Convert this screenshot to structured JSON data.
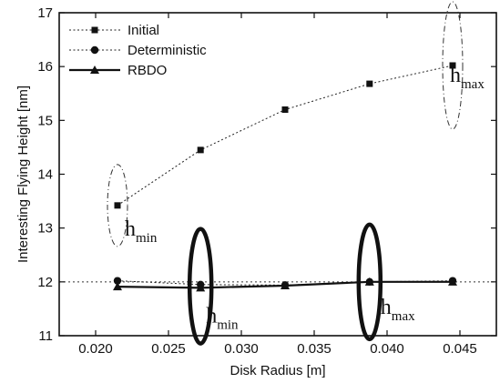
{
  "chart_data": {
    "type": "line",
    "title": "",
    "xlabel": "Disk Radius [m]",
    "ylabel": "Interesting Flying Height [nm]",
    "xlim": [
      0.0175,
      0.0475
    ],
    "ylim": [
      11,
      17
    ],
    "xticks": [
      0.02,
      0.025,
      0.03,
      0.035,
      0.04,
      0.045
    ],
    "xtick_labels": [
      "0.020",
      "0.025",
      "0.030",
      "0.035",
      "0.040",
      "0.045"
    ],
    "yticks": [
      11,
      12,
      13,
      14,
      15,
      16,
      17
    ],
    "ytick_labels": [
      "11",
      "12",
      "13",
      "14",
      "15",
      "16",
      "17"
    ],
    "grid": false,
    "legend_position": "top-left",
    "series": [
      {
        "name": "Initial",
        "marker": "square",
        "line_style": "dotted",
        "x": [
          0.0215,
          0.0272,
          0.033,
          0.0388,
          0.0445
        ],
        "y": [
          13.42,
          14.45,
          15.2,
          15.68,
          16.02
        ]
      },
      {
        "name": "Deterministic",
        "marker": "circle",
        "line_style": "dotted",
        "x": [
          0.0215,
          0.0272,
          0.033,
          0.0388,
          0.0445
        ],
        "y": [
          12.02,
          11.95,
          11.94,
          12.0,
          12.02
        ]
      },
      {
        "name": "RBDO",
        "marker": "triangle",
        "line_style": "solid",
        "x": [
          0.0215,
          0.0272,
          0.033,
          0.0388,
          0.0445
        ],
        "y": [
          11.91,
          11.89,
          11.93,
          12.0,
          12.0
        ]
      }
    ],
    "reference_line": {
      "y": 12,
      "style": "dotted"
    },
    "annotations": [
      {
        "main": "h",
        "sub": "min",
        "ellipse": "dashed",
        "x": 0.0215,
        "y": 13.42
      },
      {
        "main": "h",
        "sub": "max",
        "ellipse": "dashed",
        "x": 0.0445,
        "y": 16.02
      },
      {
        "main": "h",
        "sub": "min",
        "ellipse": "bold",
        "x": 0.0272,
        "y": 11.92
      },
      {
        "main": "h",
        "sub": "max",
        "ellipse": "bold",
        "x": 0.0388,
        "y": 12.0
      }
    ]
  }
}
